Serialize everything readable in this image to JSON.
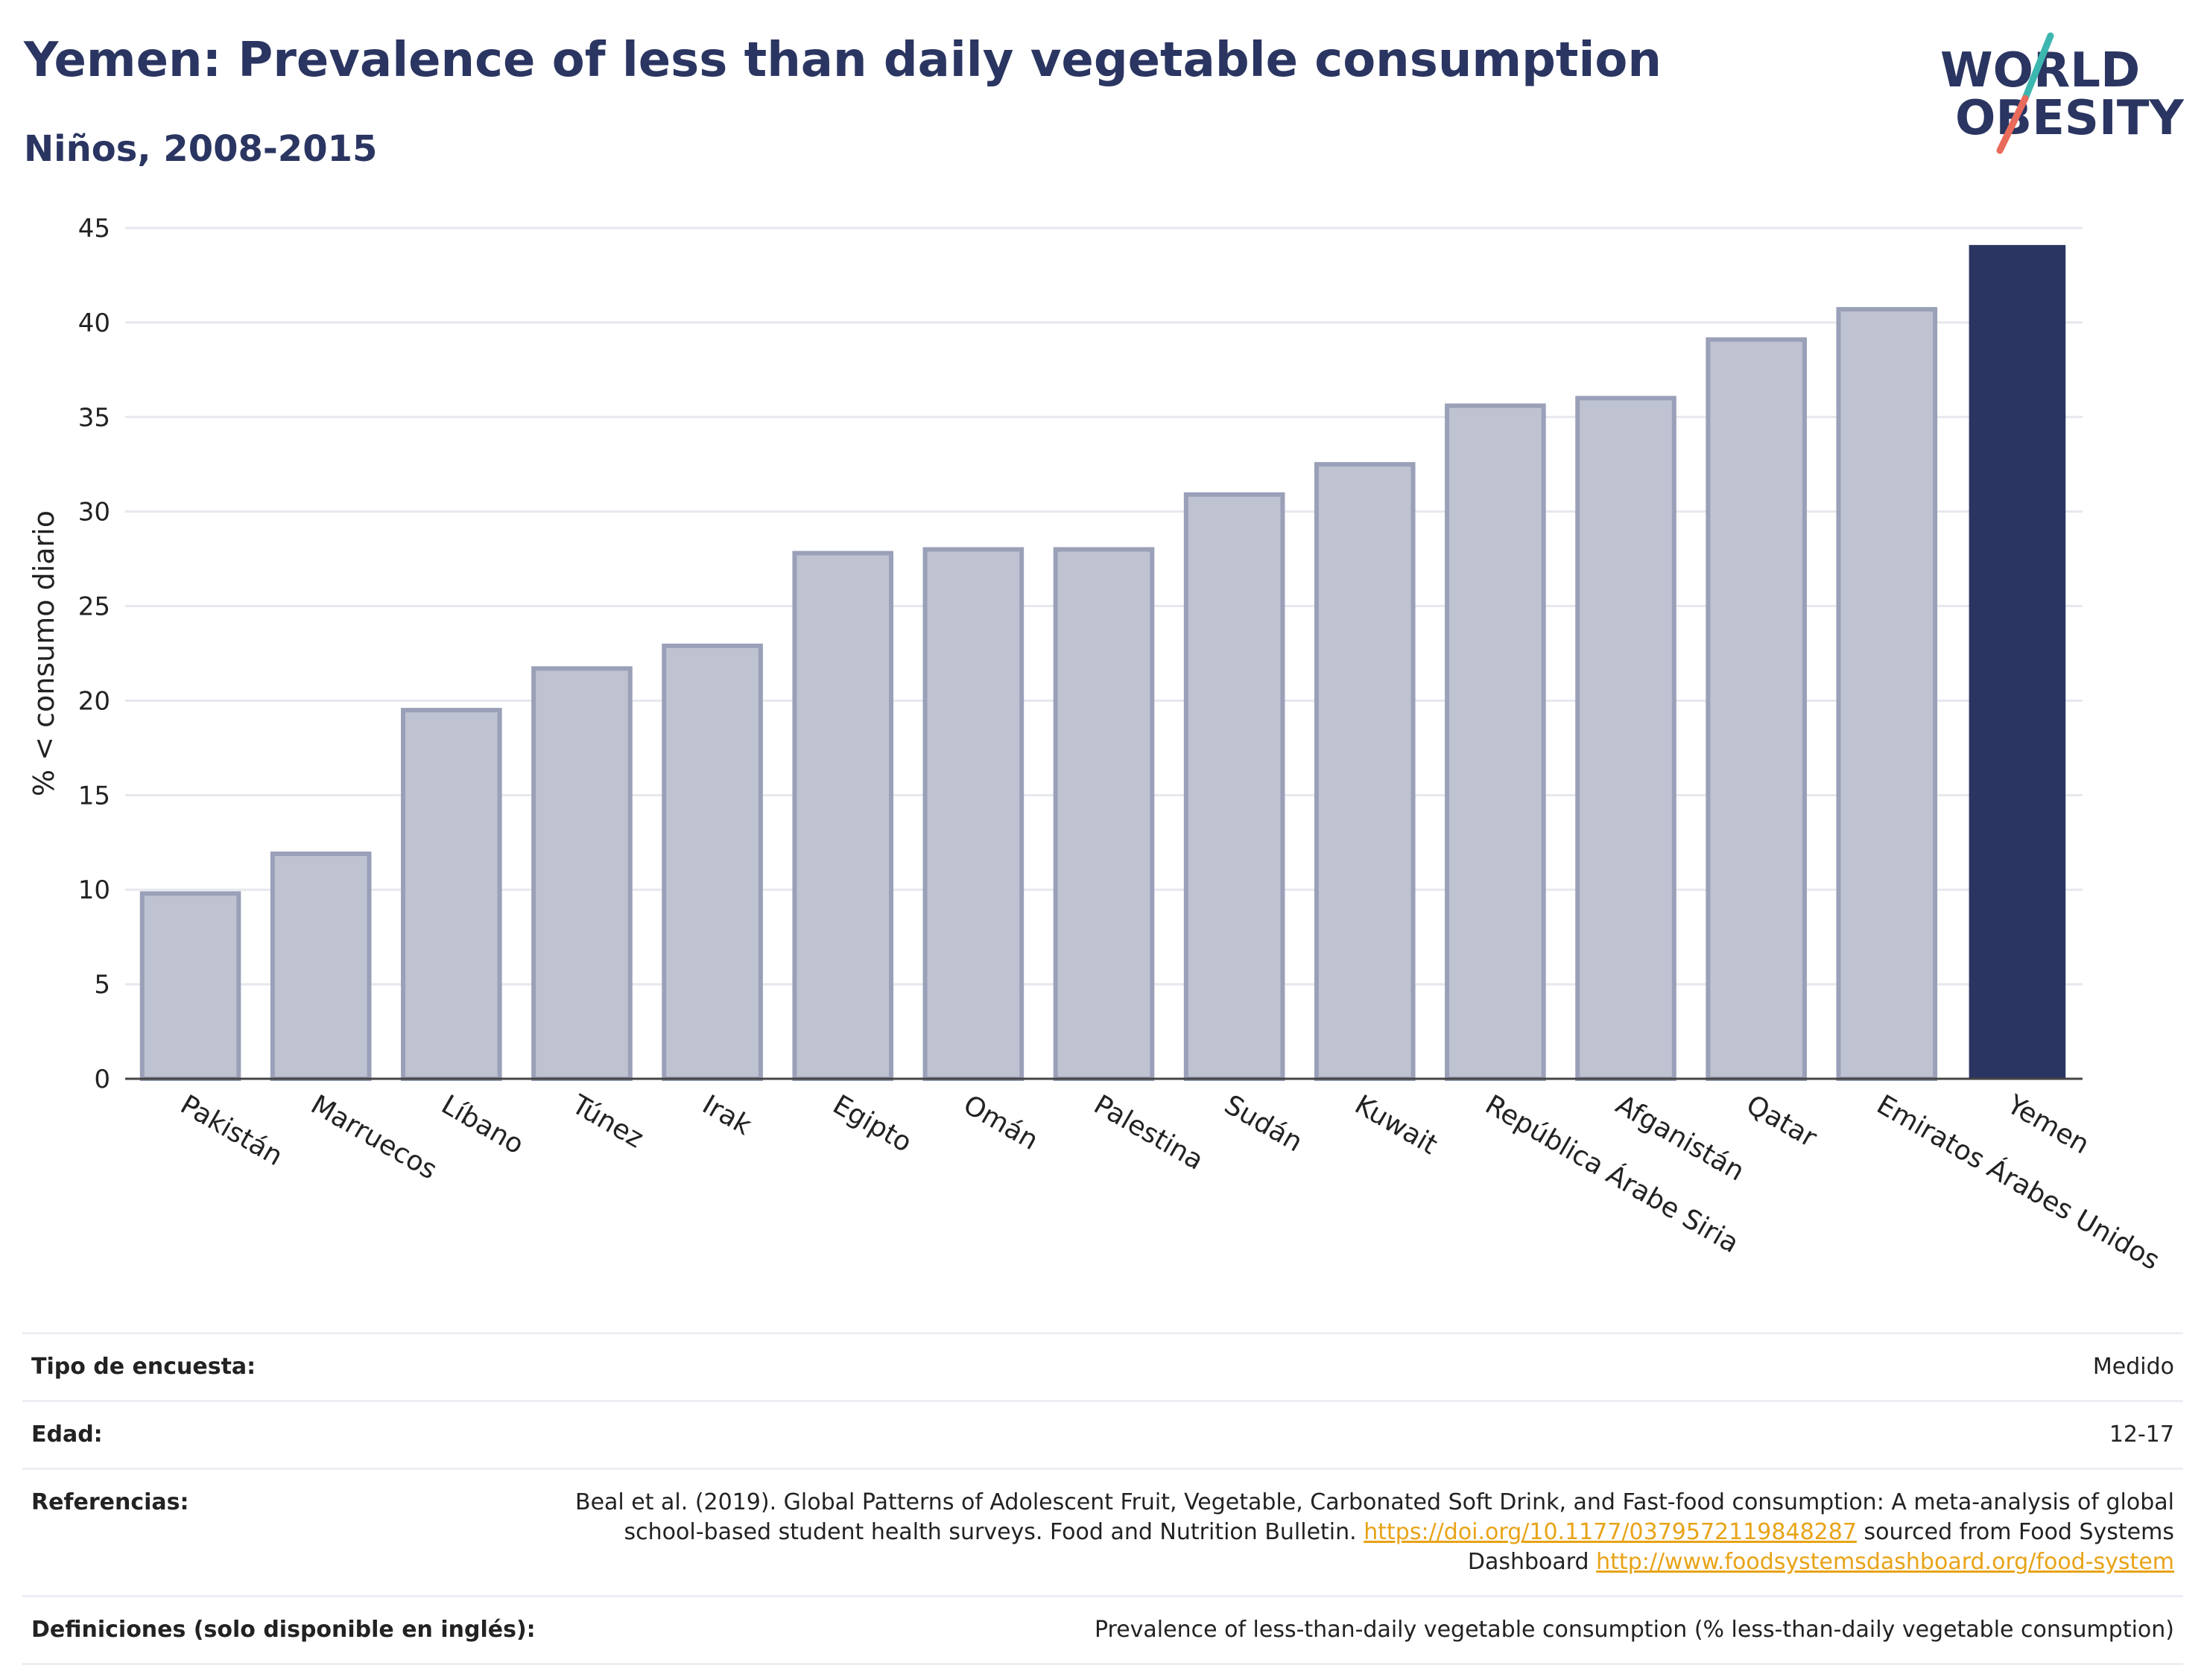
{
  "header": {
    "title": "Yemen: Prevalence of less than daily vegetable consumption",
    "subtitle": "Niños, 2008-2015"
  },
  "logo": {
    "line1": "WORLD",
    "line2": "OBESITY"
  },
  "colors": {
    "highlight_bar": "#2a3561",
    "other_bar_fill": "#bfc3d1",
    "other_bar_stroke": "#9aa0b8",
    "title_text": "#2a3561",
    "link": "#e8a317",
    "logo_slash_top": "#3cb7b0",
    "logo_slash_bottom": "#e96b5b"
  },
  "chart_data": {
    "type": "bar",
    "title": "Yemen: Prevalence of less than daily vegetable consumption",
    "subtitle": "Niños, 2008-2015",
    "xlabel": "",
    "ylabel": "% < consumo diario",
    "ylim": [
      0,
      45
    ],
    "yticks": [
      0,
      5,
      10,
      15,
      20,
      25,
      30,
      35,
      40,
      45
    ],
    "grid": true,
    "highlight": "Yemen",
    "categories": [
      "Pakistán",
      "Marruecos",
      "Líbano",
      "Túnez",
      "Irak",
      "Egipto",
      "Omán",
      "Palestina",
      "Sudán",
      "Kuwait",
      "República Árabe Siria",
      "Afganistán",
      "Qatar",
      "Emiratos Árabes Unidos",
      "Yemen"
    ],
    "values": [
      9.8,
      11.9,
      19.5,
      21.7,
      22.9,
      27.8,
      28.0,
      28.0,
      30.9,
      32.5,
      35.6,
      36.0,
      39.1,
      40.7,
      44.1
    ]
  },
  "meta": {
    "survey_type": {
      "label": "Tipo de encuesta:",
      "value": "Medido"
    },
    "age": {
      "label": "Edad:",
      "value": "12-17"
    },
    "references": {
      "label": "Referencias:",
      "text1": "Beal et al. (2019). Global Patterns of Adolescent Fruit, Vegetable, Carbonated Soft Drink, and Fast-food consumption: A meta-analysis of global school-based student health surveys. Food and Nutrition Bulletin.",
      "link1": "https://doi.org/10.1177/0379572119848287",
      "text2": "sourced from Food Systems Dashboard",
      "link2": "http://www.foodsystemsdashboard.org/food-system"
    },
    "definitions": {
      "label": "Definiciones (solo disponible en inglés):",
      "value": "Prevalence of less-than-daily vegetable consumption (% less-than-daily vegetable consumption)"
    }
  }
}
